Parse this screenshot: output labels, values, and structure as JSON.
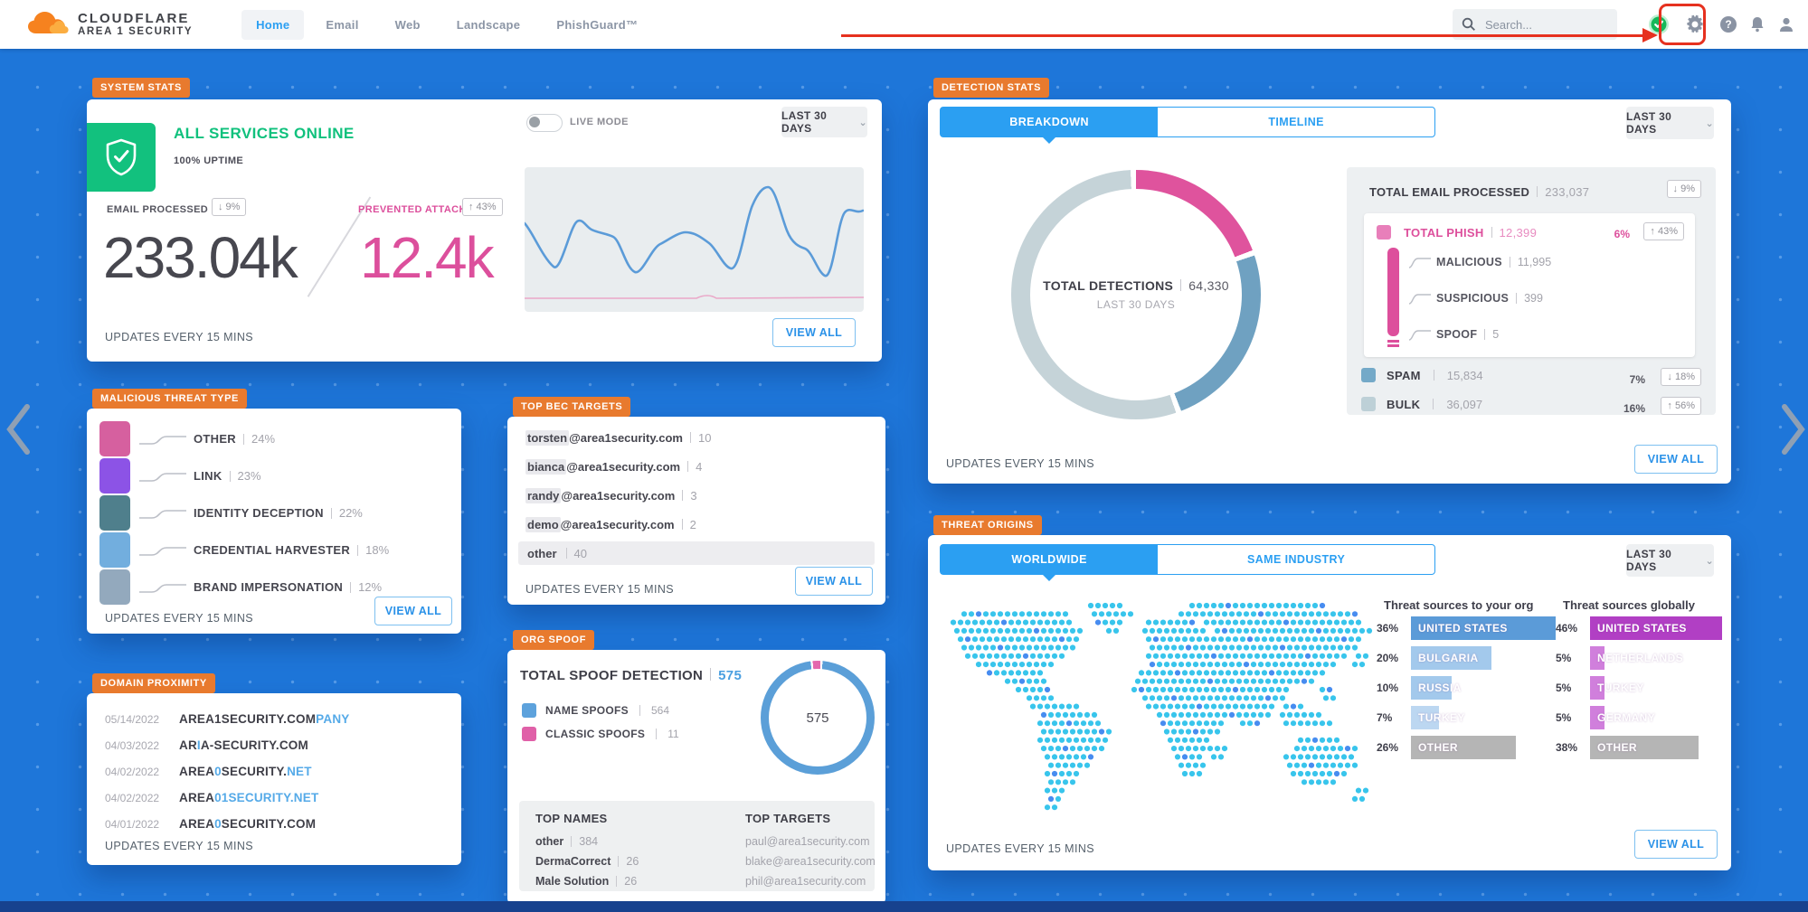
{
  "nav": {
    "brand_line1": "CLOUDFLARE",
    "brand_line2": "AREA 1 SECURITY",
    "items": [
      "Home",
      "Email",
      "Web",
      "Landscape",
      "PhishGuard™"
    ],
    "search_placeholder": "Search..."
  },
  "system_stats": {
    "badge": "SYSTEM STATS",
    "status": "ALL SERVICES ONLINE",
    "uptime": "100% UPTIME",
    "live_mode_label": "LIVE MODE",
    "range": "LAST 30 DAYS",
    "email_processed_label": "EMAIL PROCESSED",
    "email_processed_trend": "↓ 9%",
    "email_processed_value": "233.04k",
    "prevented_label": "PREVENTED ATTACKS",
    "prevented_trend": "↑ 43%",
    "prevented_value": "12.4k",
    "footer": "UPDATES EVERY 15 MINS",
    "view_all": "VIEW ALL"
  },
  "malicious_threat_type": {
    "badge": "MALICIOUS THREAT TYPE",
    "rows": [
      {
        "label": "OTHER",
        "value": "24%",
        "color": "#d6609f"
      },
      {
        "label": "LINK",
        "value": "23%",
        "color": "#8c53e6"
      },
      {
        "label": "IDENTITY DECEPTION",
        "value": "22%",
        "color": "#4f7f8c"
      },
      {
        "label": "CREDENTIAL HARVESTER",
        "value": "18%",
        "color": "#72aede"
      },
      {
        "label": "BRAND IMPERSONATION",
        "value": "12%",
        "color": "#93a9bd"
      }
    ],
    "footer": "UPDATES EVERY 15 MINS",
    "view_all": "VIEW ALL"
  },
  "domain_proximity": {
    "badge": "DOMAIN PROXIMITY",
    "rows": [
      {
        "date": "05/14/2022",
        "pre": "AREA1SECURITY.COM",
        "hl1": "PANY",
        "mid": "",
        "hl2": ""
      },
      {
        "date": "04/03/2022",
        "pre": "AR",
        "hl1": "I",
        "mid": "A-SECURITY.COM",
        "hl2": ""
      },
      {
        "date": "04/02/2022",
        "pre": "AREA",
        "hl1": "0",
        "mid": "SECURITY.",
        "hl2": "NET"
      },
      {
        "date": "04/02/2022",
        "pre": "AREA",
        "hl1": "01SECURITY.NET",
        "mid": "",
        "hl2": ""
      },
      {
        "date": "04/01/2022",
        "pre": "AREA",
        "hl1": "0",
        "mid": "SECURITY.COM",
        "hl2": ""
      }
    ],
    "footer": "UPDATES EVERY 15 MINS"
  },
  "top_bec_targets": {
    "badge": "TOP BEC TARGETS",
    "rows": [
      {
        "user": "torsten",
        "domain": "@area1security.com",
        "value": "10"
      },
      {
        "user": "bianca",
        "domain": "@area1security.com",
        "value": "4"
      },
      {
        "user": "randy",
        "domain": "@area1security.com",
        "value": "3"
      },
      {
        "user": "demo",
        "domain": "@area1security.com",
        "value": "2"
      },
      {
        "user": "other",
        "domain": "",
        "value": "40"
      }
    ],
    "footer": "UPDATES EVERY 15 MINS",
    "view_all": "VIEW ALL"
  },
  "org_spoof": {
    "badge": "ORG SPOOF",
    "title": "TOTAL SPOOF DETECTION",
    "total": "575",
    "legend": [
      {
        "label": "NAME SPOOFS",
        "value": "564",
        "color": "#5da2dc"
      },
      {
        "label": "CLASSIC SPOOFS",
        "value": "11",
        "color": "#e060a8"
      }
    ],
    "donut_value": "575",
    "top_names_title": "TOP NAMES",
    "top_names": [
      {
        "name": "other",
        "value": "384"
      },
      {
        "name": "DermaCorrect",
        "value": "26"
      },
      {
        "name": "Male Solution",
        "value": "26"
      }
    ],
    "top_targets_title": "TOP TARGETS",
    "top_targets": [
      {
        "email": "paul@area1security.com"
      },
      {
        "email": "blake@area1security.com"
      },
      {
        "email": "phil@area1security.com"
      }
    ]
  },
  "detection_stats": {
    "badge": "DETECTION STATS",
    "tabs": [
      "BREAKDOWN",
      "TIMELINE"
    ],
    "range": "LAST 30 DAYS",
    "donut_center_label": "TOTAL DETECTIONS",
    "donut_center_value": "64,330",
    "donut_center_sub": "LAST 30 DAYS",
    "donut_segments": [
      {
        "label": "TOTAL PHISH",
        "value": 12399,
        "color": "#df539d"
      },
      {
        "label": "SPAM",
        "value": 15834,
        "color": "#6fa1c1"
      },
      {
        "label": "BULK",
        "value": 36097,
        "color": "#c5d3d8"
      }
    ],
    "total_email_label": "TOTAL EMAIL PROCESSED",
    "total_email_value": "233,037",
    "total_email_trend": "↓ 9%",
    "phish_label": "TOTAL PHISH",
    "phish_value": "12,399",
    "phish_pct": "6%",
    "phish_trend": "↑ 43%",
    "phish_subs": [
      {
        "label": "MALICIOUS",
        "value": "11,995"
      },
      {
        "label": "SUSPICIOUS",
        "value": "399"
      },
      {
        "label": "SPOOF",
        "value": "5"
      }
    ],
    "spam_label": "SPAM",
    "spam_value": "15,834",
    "spam_pct": "7%",
    "spam_trend": "↓ 18%",
    "bulk_label": "BULK",
    "bulk_value": "36,097",
    "bulk_pct": "16%",
    "bulk_trend": "↑ 56%",
    "footer": "UPDATES EVERY 15 MINS",
    "view_all": "VIEW ALL"
  },
  "threat_origins": {
    "badge": "THREAT ORIGINS",
    "tabs": [
      "WORLDWIDE",
      "SAME INDUSTRY"
    ],
    "range": "LAST 30 DAYS",
    "org_title": "Threat sources to your org",
    "org_bars": [
      {
        "pct_label": "36%",
        "pct": 36,
        "label": "UNITED STATES",
        "color": "#5b9bd8"
      },
      {
        "pct_label": "20%",
        "pct": 20,
        "label": "BULGARIA",
        "color": "#a3c9ec"
      },
      {
        "pct_label": "10%",
        "pct": 10,
        "label": "RUSSIA",
        "color": "#a3c9ec"
      },
      {
        "pct_label": "7%",
        "pct": 7,
        "label": "TURKEY",
        "color": "#bcd7f1"
      },
      {
        "pct_label": "26%",
        "pct": 26,
        "label": "OTHER",
        "color": "#b5b5b5"
      }
    ],
    "global_title": "Threat sources globally",
    "global_bars": [
      {
        "pct_label": "46%",
        "pct": 46,
        "label": "UNITED STATES",
        "color": "#b13fc4"
      },
      {
        "pct_label": "5%",
        "pct": 5,
        "label": "NETHERLANDS",
        "color": "#d07fdc"
      },
      {
        "pct_label": "5%",
        "pct": 5,
        "label": "TURKEY",
        "color": "#d07fdc"
      },
      {
        "pct_label": "5%",
        "pct": 5,
        "label": "GERMANY",
        "color": "#d07fdc"
      },
      {
        "pct_label": "38%",
        "pct": 38,
        "label": "OTHER",
        "color": "#b5b5b5"
      }
    ],
    "footer": "UPDATES EVERY 15 MINS",
    "view_all": "VIEW ALL"
  }
}
